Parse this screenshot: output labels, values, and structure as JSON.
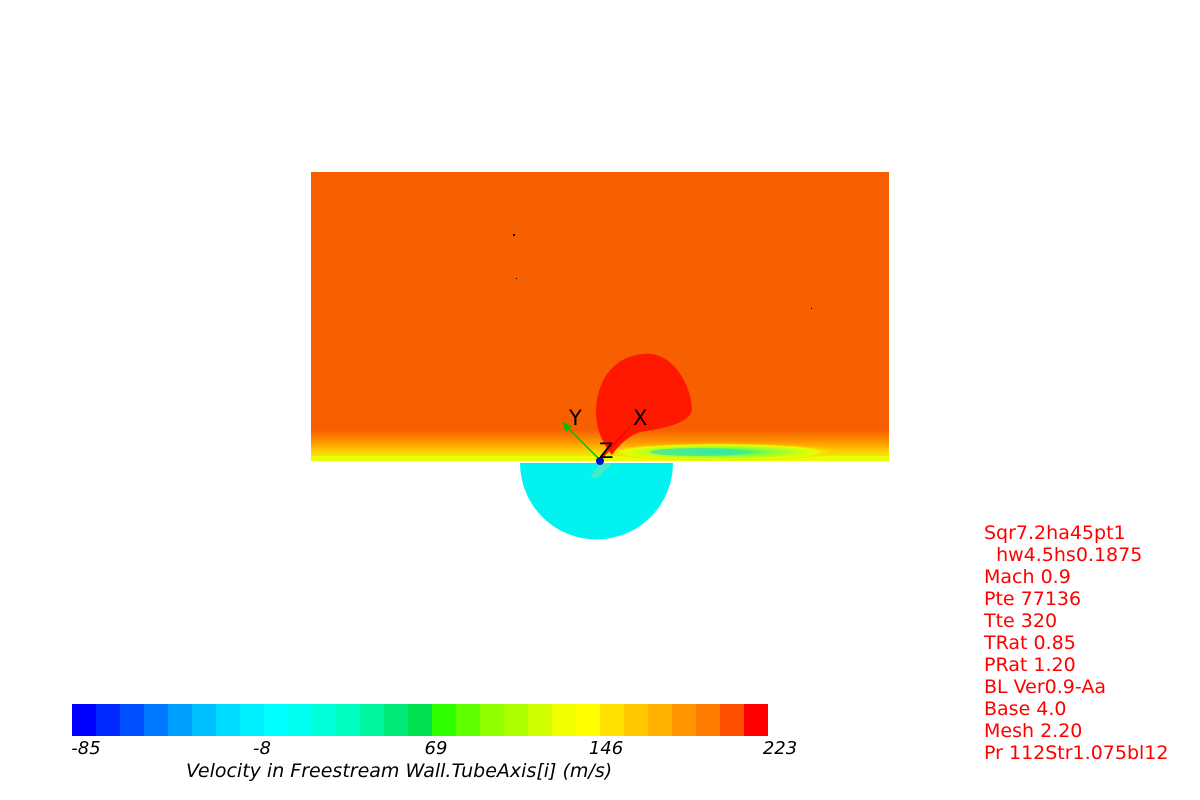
{
  "colors": {
    "field": "#f75f00",
    "hot": "#ff1800",
    "cylinder": "#00f3f0",
    "info_text": "#ff0000"
  },
  "colormap": [
    "#0000ff",
    "#0028ff",
    "#0050ff",
    "#0078ff",
    "#00a0ff",
    "#00c0ff",
    "#00dcff",
    "#00f0ff",
    "#00ffff",
    "#00fff0",
    "#00ffd8",
    "#00ffc0",
    "#00f5a0",
    "#00e878",
    "#00e050",
    "#30ff00",
    "#60ff00",
    "#90ff00",
    "#b0ff00",
    "#d0ff00",
    "#f0ff00",
    "#ffff00",
    "#ffe000",
    "#ffc800",
    "#ffb000",
    "#ff9600",
    "#ff7c00",
    "#ff5000",
    "#ff0000"
  ],
  "axes": {
    "x": "X",
    "y": "Y",
    "z": "Z"
  },
  "legend": {
    "ticks": [
      "-85",
      "-8",
      "69",
      "146",
      "223"
    ],
    "title": "Velocity in Freestream Wall.TubeAxis[i] (m/s)"
  },
  "info_lines": [
    "Sqr7.2ha45pt1",
    "  hw4.5hs0.1875",
    "Mach 0.9",
    "Pte 77136",
    "Tte 320",
    "TRat 0.85",
    "PRat 1.20",
    "BL Ver0.9-Aa",
    "Base 4.0",
    "Mesh 2.20",
    "Pr 112Str1.075bl12"
  ]
}
